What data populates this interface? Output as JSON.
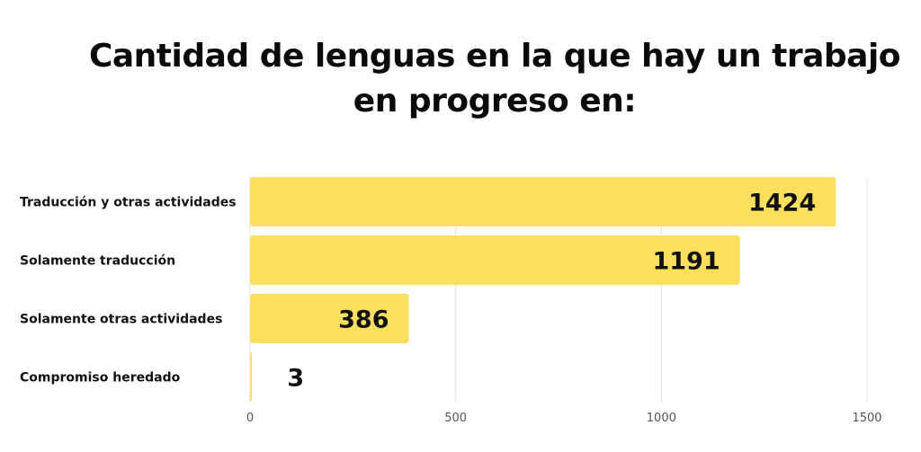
{
  "chart_data": {
    "type": "bar",
    "orientation": "horizontal",
    "title": "Cantidad de lenguas en la que hay un trabajo en progreso en:",
    "title_lines": [
      "Cantidad de lenguas en la que hay un trabajo",
      "en progreso en:"
    ],
    "categories": [
      "Traducción y otras actividades",
      "Solamente traducción",
      "Solamente otras actividades",
      "Compromiso heredado"
    ],
    "values": [
      1424,
      1191,
      386,
      3
    ],
    "xlim": [
      0,
      1500
    ],
    "ticks": [
      0,
      500,
      1000,
      1500
    ],
    "grid": true,
    "xlabel": "",
    "ylabel": "",
    "bar_color": "#fcdf5d",
    "grid_color": "#e2e2e2"
  }
}
